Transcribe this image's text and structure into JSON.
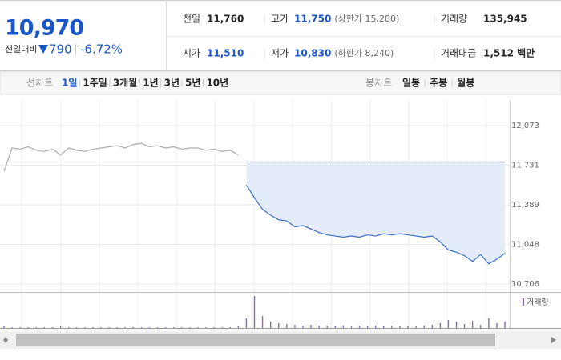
{
  "header": {
    "price": "10,970",
    "change_label": "전일대비",
    "change": "790",
    "change_pct": "-6.72%",
    "stats": [
      [
        "전일",
        "11,760"
      ],
      [
        "고가",
        "11,750",
        "(상한가 15,280)"
      ],
      [
        "거래량",
        "135,945"
      ],
      [
        "시가",
        "11,510"
      ],
      [
        "저가",
        "10,830",
        "(하한가 8,240)"
      ],
      [
        "거래대금",
        "1,512 백만"
      ]
    ]
  },
  "tabs": {
    "line_label": "선차트",
    "line": [
      "1일",
      "1주일",
      "3개월",
      "1년",
      "3년",
      "5년",
      "10년"
    ],
    "candle_label": "봉차트",
    "candle": [
      "일봉",
      "주봉",
      "월봉"
    ]
  },
  "chart_data": {
    "type": "line",
    "reference": 11760,
    "reference_color": "#555",
    "area_color": "#e4ecf9",
    "ylim": [
      10706,
      12073
    ],
    "yticks": [
      {
        "value": 10706,
        "label": "10,706"
      },
      {
        "value": 11048,
        "label": "11,048"
      },
      {
        "value": 11389,
        "label": "11,389"
      },
      {
        "value": 11731,
        "label": "11,731"
      },
      {
        "value": 12073,
        "label": "12,073"
      }
    ],
    "series": [
      {
        "color": "#aaaaaa",
        "values": [
          11680,
          11880,
          11870,
          11890,
          11860,
          11850,
          11870,
          11820,
          11880,
          11860,
          11850,
          11870,
          11880,
          11890,
          11900,
          11880,
          11910,
          11920,
          11890,
          11900,
          11880,
          11890,
          11870,
          11880,
          11880,
          11860,
          11870,
          11850,
          11860,
          11820,
          null,
          null,
          null,
          null,
          null,
          null,
          null,
          null,
          null,
          null,
          null,
          null,
          null,
          null,
          null,
          null,
          null,
          null,
          null,
          null,
          null,
          null,
          null,
          null,
          null,
          null,
          null,
          null,
          null,
          null,
          null,
          null,
          null
        ]
      },
      {
        "color": "#3a6fc9",
        "values": [
          null,
          null,
          null,
          null,
          null,
          null,
          null,
          null,
          null,
          null,
          null,
          null,
          null,
          null,
          null,
          null,
          null,
          null,
          null,
          null,
          null,
          null,
          null,
          null,
          null,
          null,
          null,
          null,
          null,
          null,
          11560,
          11450,
          11350,
          11300,
          11260,
          11250,
          11200,
          11210,
          11180,
          11150,
          11130,
          11120,
          11110,
          11120,
          11110,
          11130,
          11120,
          11140,
          11130,
          11140,
          11130,
          11120,
          11110,
          11120,
          11070,
          11000,
          10980,
          10950,
          10900,
          10960,
          10880,
          10920,
          10970
        ]
      }
    ],
    "volume": {
      "name": "거래량",
      "color": "#8b6bb8",
      "values": [
        2,
        1,
        1,
        1,
        1,
        1,
        1,
        2,
        1,
        1,
        1,
        1,
        1,
        1,
        1,
        1,
        1,
        1,
        1,
        1,
        1,
        1,
        1,
        1,
        1,
        1,
        1,
        1,
        1,
        2,
        12,
        40,
        15,
        8,
        6,
        5,
        4,
        3,
        4,
        3,
        3,
        2,
        3,
        2,
        3,
        2,
        3,
        2,
        3,
        2,
        2,
        2,
        3,
        4,
        6,
        10,
        8,
        5,
        9,
        4,
        12,
        6,
        8
      ]
    }
  }
}
